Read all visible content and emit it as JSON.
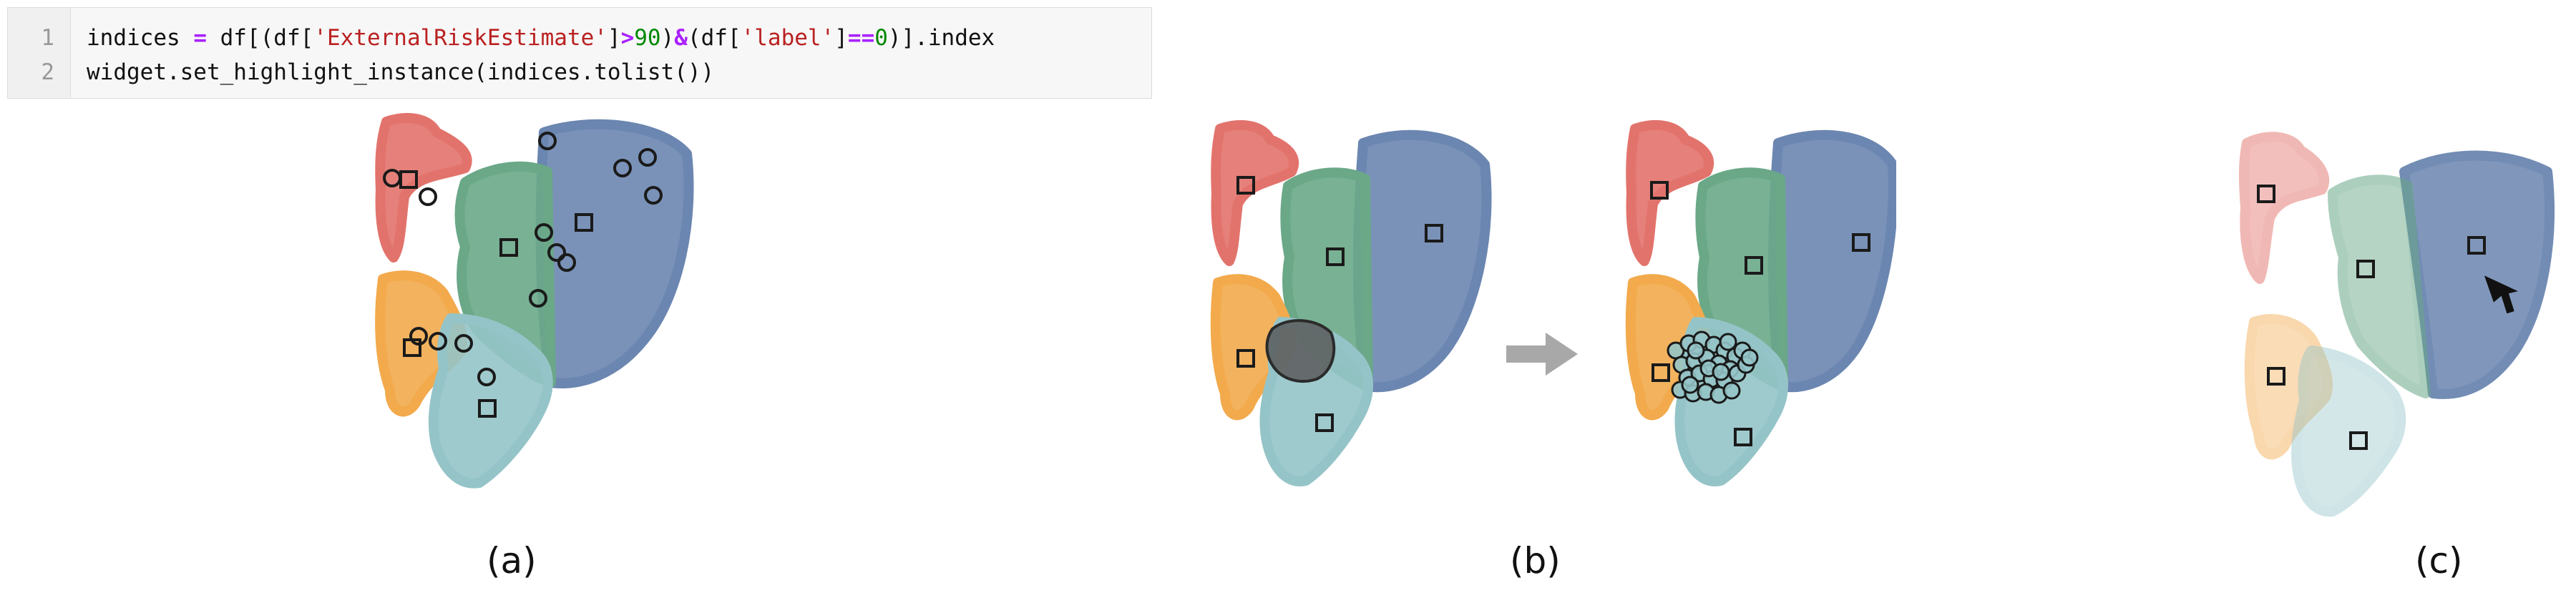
{
  "code": {
    "line_numbers": [
      "1",
      "2"
    ],
    "line1": {
      "a": "indices ",
      "op1": "=",
      "b": " df[(df[",
      "s1": "'ExternalRiskEstimate'",
      "c": "]",
      "op2": ">",
      "n1": "90",
      "d": ")",
      "op3": "&",
      "e": "(df[",
      "s2": "'label'",
      "f": "]",
      "op4": "==",
      "n2": "0",
      "g": ")].index"
    },
    "line2": "widget.set_highlight_instance(indices.tolist())"
  },
  "captions": {
    "a": "(a)",
    "b": "(b)",
    "c": "(c)"
  },
  "colors": {
    "red_cluster": "#e2736c",
    "green_cluster": "#6aa888",
    "blue_cluster": "#6b86b0",
    "orange_cluster": "#f2aa4c",
    "teal_cluster": "#95c4c8",
    "marker_stroke": "#1a1a1a",
    "lasso_fill": "#5a5a5a",
    "arrow_gray": "#a8a8a8"
  }
}
